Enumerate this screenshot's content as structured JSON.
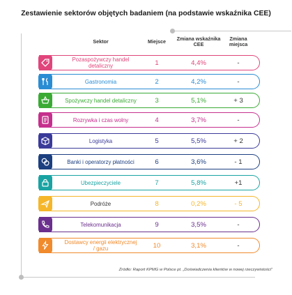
{
  "title": "Zestawienie sektorów objętych badaniem (na podstawie wskaźnika CEE)",
  "headers": {
    "sector": "Sektor",
    "rank": "Miejsce",
    "share_l1": "Zmiana wskaźnika",
    "share_l2": "CEE",
    "change_l1": "Zmiana",
    "change_l2": "miejsca"
  },
  "rows": [
    {
      "sector_l1": "Pozaspożywczy handel",
      "sector_l2": "detaliczny",
      "rank": "1",
      "cee": "4,4%",
      "change": "-",
      "color": "#e0457b",
      "icon": "tag-icon"
    },
    {
      "sector_l1": "Gastronomia",
      "sector_l2": "",
      "rank": "2",
      "cee": "4,2%",
      "change": "-",
      "color": "#2a8dd4",
      "icon": "cutlery-icon"
    },
    {
      "sector_l1": "Spożywczy handel detaliczny",
      "sector_l2": "",
      "rank": "3",
      "cee": "5,1%",
      "change": "+ 3",
      "color": "#3aaa35",
      "icon": "basket-icon"
    },
    {
      "sector_l1": "Rozrywka i czas wolny",
      "sector_l2": "",
      "rank": "4",
      "cee": "3,7%",
      "change": "-",
      "color": "#c62f8d",
      "icon": "ticket-icon"
    },
    {
      "sector_l1": "Logistyka",
      "sector_l2": "",
      "rank": "5",
      "cee": "5,5%",
      "change": "+ 2",
      "color": "#3a3a9a",
      "icon": "box-icon"
    },
    {
      "sector_l1": "Banki i operatorzy płatności",
      "sector_l2": "",
      "rank": "6",
      "cee": "3,6%",
      "change": "- 1",
      "color": "#1c3f80",
      "icon": "coins-icon"
    },
    {
      "sector_l1": "Ubezpieczyciele",
      "sector_l2": "",
      "rank": "7",
      "cee": "5,8%",
      "change": "+1",
      "color": "#1aa3a3",
      "icon": "lock-icon"
    },
    {
      "sector_l1": "Podróże",
      "sector_l2": "",
      "rank": "8",
      "cee": "0,2%",
      "change": "- 5",
      "color": "#f5b62a",
      "icon": "plane-icon"
    },
    {
      "sector_l1": "Telekomunikacja",
      "sector_l2": "",
      "rank": "9",
      "cee": "3,5%",
      "change": "-",
      "color": "#6b2f8e",
      "icon": "phone-icon"
    },
    {
      "sector_l1": "Dostawcy energii elektrycznej",
      "sector_l2": "/ gazu",
      "rank": "10",
      "cee": "3,1%",
      "change": "-",
      "color": "#f08a2c",
      "icon": "energy-icon"
    }
  ],
  "source": "Źródło: Raport KPMG w Polsce pt. „Doświadczenia klientów w nowej rzeczywistości”"
}
